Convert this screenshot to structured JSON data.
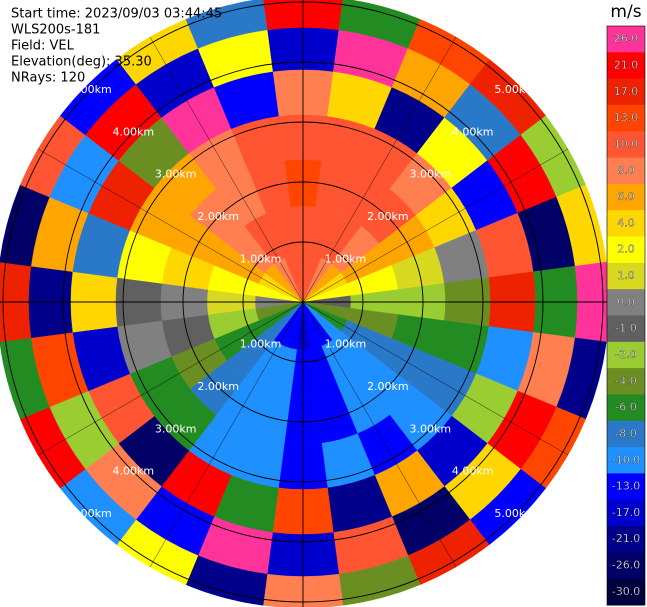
{
  "chart_data": {
    "type": "ppi",
    "header": [
      "Start time: 2023/09/03 03:44:45",
      "WLS200s-181",
      "Field: VEL",
      "Elevation(deg): 35.30",
      "NRays: 120"
    ],
    "colorbar": {
      "title": "m/s",
      "levels": [
        {
          "value": 26,
          "label": "26.0",
          "color": "#ff3399"
        },
        {
          "value": 21,
          "label": "21.0",
          "color": "#ff0000"
        },
        {
          "value": 17,
          "label": "17.0",
          "color": "#ee2200"
        },
        {
          "value": 13,
          "label": "13.0",
          "color": "#ff4500"
        },
        {
          "value": 10,
          "label": "10.0",
          "color": "#ff5533"
        },
        {
          "value": 8,
          "label": "8.0",
          "color": "#ff7f50"
        },
        {
          "value": 6,
          "label": "6.0",
          "color": "#ffa500"
        },
        {
          "value": 4,
          "label": "4.0",
          "color": "#ffd700"
        },
        {
          "value": 2,
          "label": "2.0",
          "color": "#ffff00"
        },
        {
          "value": 1,
          "label": "1.0",
          "color": "#d8d820"
        },
        {
          "value": 0,
          "label": "0.0",
          "color": "#808080"
        },
        {
          "value": -1,
          "label": "-1.0",
          "color": "#606060"
        },
        {
          "value": -2,
          "label": "-2.0",
          "color": "#9acd32"
        },
        {
          "value": -4,
          "label": "-4.0",
          "color": "#6b8e23"
        },
        {
          "value": -6,
          "label": "-6.0",
          "color": "#228b22"
        },
        {
          "value": -8,
          "label": "-8.0",
          "color": "#2a78c8"
        },
        {
          "value": -10,
          "label": "-10.0",
          "color": "#1e90ff"
        },
        {
          "value": -13,
          "label": "-13.0",
          "color": "#0000ff"
        },
        {
          "value": -17,
          "label": "-17.0",
          "color": "#0000cd"
        },
        {
          "value": -21,
          "label": "-21.0",
          "color": "#00008b"
        },
        {
          "value": -26,
          "label": "-26.0",
          "color": "#000066"
        },
        {
          "value": -30,
          "label": "-30.0",
          "color": "#000040"
        }
      ]
    },
    "rlim": [
      0,
      5.1
    ],
    "range_rings": [
      {
        "value": 1,
        "label": "1.00km"
      },
      {
        "value": 2,
        "label": "2.00km"
      },
      {
        "value": 3,
        "label": "3.00km"
      },
      {
        "value": 4,
        "label": "4.00km"
      },
      {
        "value": 5,
        "label": "5.00km"
      }
    ],
    "azimuth": [
      0,
      15,
      30,
      45,
      60,
      75,
      90,
      105,
      120,
      135,
      150,
      165,
      180,
      195,
      210,
      225,
      240,
      255,
      270,
      285,
      300,
      315,
      330,
      345
    ],
    "range": [
      0.4,
      1.2,
      2,
      2.75,
      3.5,
      4.25,
      4.9
    ],
    "values": [
      [
        10,
        12,
        13,
        12,
        8,
        -17,
        21
      ],
      [
        10,
        12,
        12,
        11,
        4,
        26,
        -6
      ],
      [
        8,
        10,
        11,
        10,
        -21,
        6,
        13
      ],
      [
        6,
        8,
        10,
        8,
        2,
        -8,
        17
      ],
      [
        4,
        6,
        6,
        4,
        -13,
        21,
        -2
      ],
      [
        2,
        2,
        1,
        0,
        10,
        -26,
        4
      ],
      [
        -1,
        -2,
        -2,
        -4,
        17,
        -6,
        26
      ],
      [
        -4,
        -4,
        -5,
        -6,
        -10,
        8,
        -21
      ],
      [
        -6,
        -7,
        -8,
        -8,
        -2,
        21,
        13
      ],
      [
        -9,
        -9,
        -10,
        -9,
        -17,
        4,
        -13
      ],
      [
        -11,
        -10,
        -10,
        -11,
        6,
        -26,
        17
      ],
      [
        -13,
        -11,
        -11,
        -10,
        -21,
        10,
        -4
      ],
      [
        -14,
        -11,
        -11,
        -11,
        13,
        -17,
        8
      ],
      [
        -13,
        -10,
        -10,
        -10,
        -6,
        26,
        -21
      ],
      [
        -11,
        -10,
        -9,
        -9,
        21,
        -13,
        2
      ],
      [
        -8,
        -8,
        -7,
        -6,
        -26,
        8,
        -10
      ],
      [
        -6,
        -5,
        -4,
        -5,
        10,
        -2,
        21
      ],
      [
        -3,
        -2,
        -1,
        0,
        -17,
        13,
        -6
      ],
      [
        0,
        1,
        0,
        -1,
        4,
        -21,
        17
      ],
      [
        2,
        3,
        4,
        2,
        -8,
        6,
        -26
      ],
      [
        4,
        6,
        6,
        6,
        17,
        -10,
        10
      ],
      [
        6,
        8,
        8,
        7,
        -4,
        21,
        -13
      ],
      [
        8,
        10,
        9,
        8,
        26,
        -17,
        4
      ],
      [
        10,
        11,
        12,
        10,
        -13,
        2,
        -8
      ]
    ]
  }
}
